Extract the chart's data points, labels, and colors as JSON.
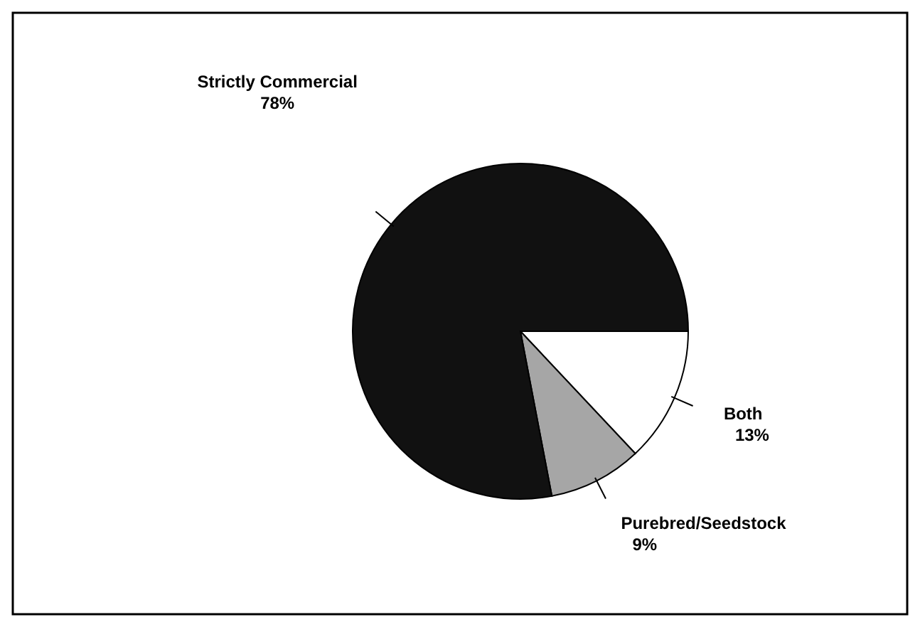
{
  "chart_data": {
    "type": "pie",
    "categories": [
      "Both",
      "Purebred/Seedstock",
      "Strictly Commercial"
    ],
    "values": [
      13,
      9,
      78
    ],
    "colors": [
      "#ffffff",
      "#a6a6a6",
      "#111111"
    ],
    "value_labels": [
      "13%",
      "9%",
      "78%"
    ]
  }
}
